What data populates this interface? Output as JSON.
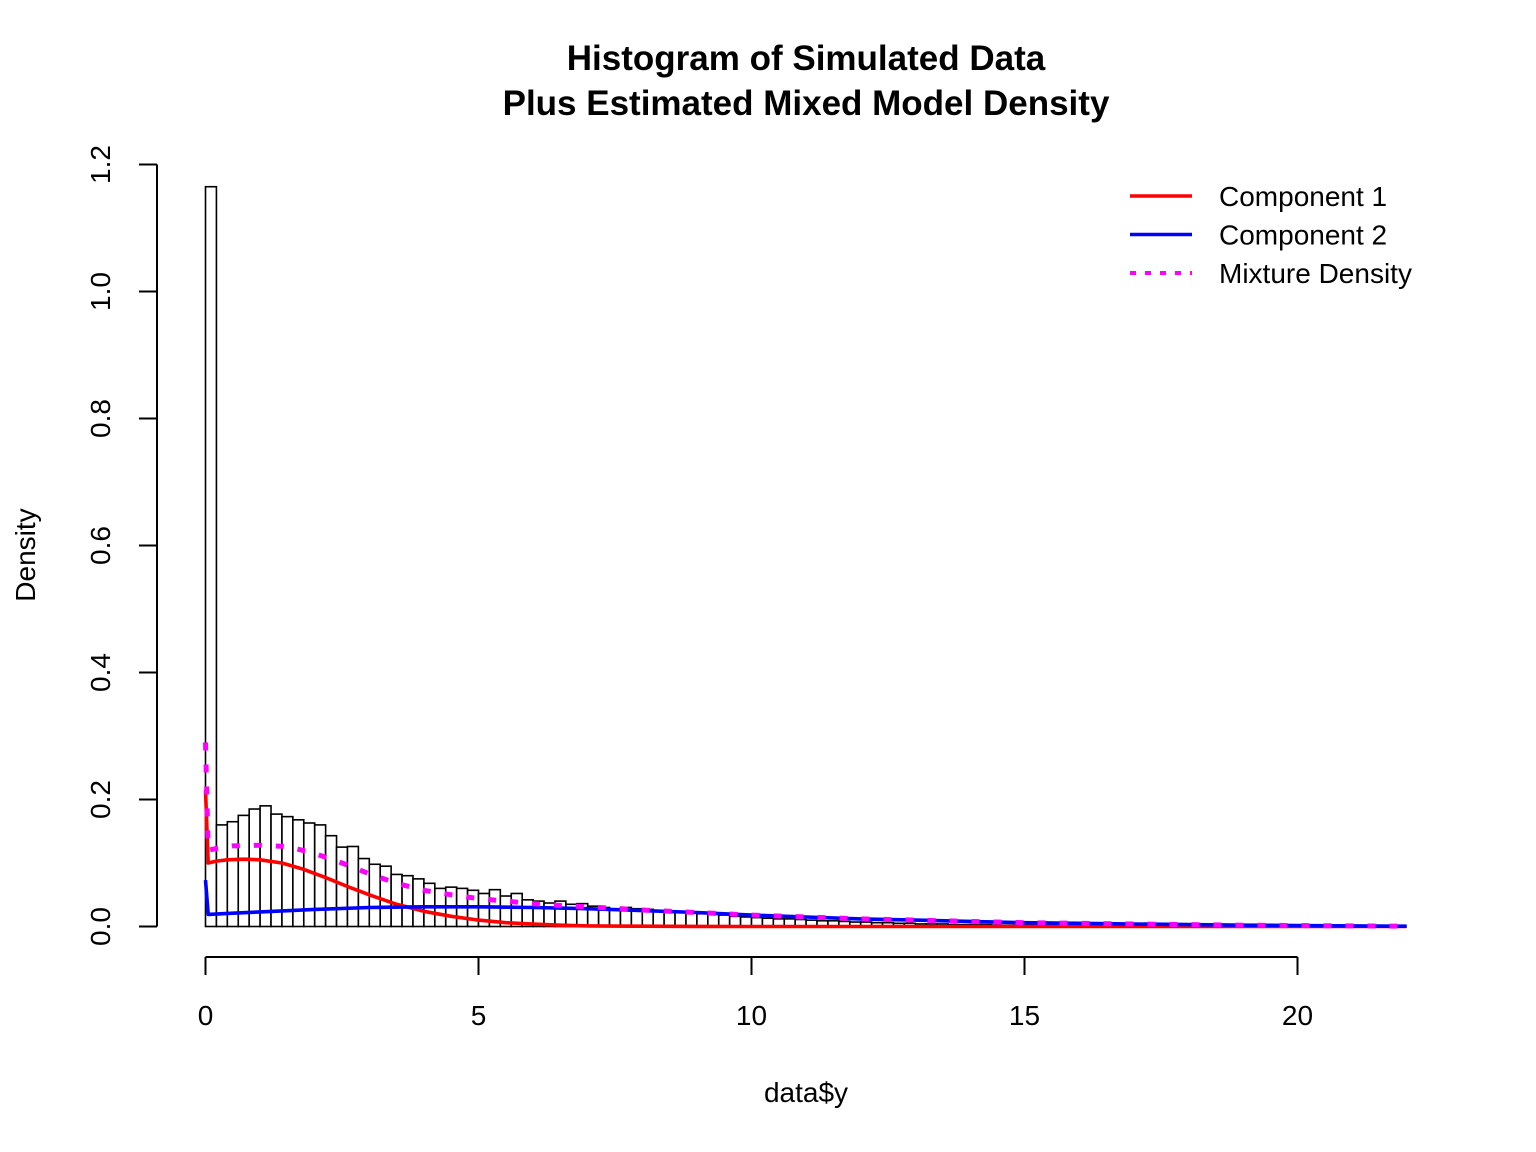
{
  "chart_data": {
    "type": "histogram",
    "title": "Histogram of Simulated Data",
    "subtitle": "Plus Estimated Mixed Model Density",
    "xlabel": "data$y",
    "ylabel": "Density",
    "xlim": [
      0,
      22
    ],
    "ylim": [
      0,
      1.2
    ],
    "x_ticks": [
      0,
      5,
      10,
      15,
      20
    ],
    "x_tick_labels": [
      "0",
      "5",
      "10",
      "15",
      "20"
    ],
    "y_ticks": [
      0,
      0.2,
      0.4,
      0.6,
      0.8,
      1.0,
      1.2
    ],
    "y_tick_labels": [
      "0.0",
      "0.2",
      "0.4",
      "0.6",
      "0.8",
      "1.0",
      "1.2"
    ],
    "grid": false,
    "histogram": {
      "bin_width": 0.2,
      "bin_start": 0,
      "densities": [
        1.165,
        0.16,
        0.165,
        0.175,
        0.185,
        0.19,
        0.177,
        0.173,
        0.168,
        0.163,
        0.16,
        0.143,
        0.125,
        0.126,
        0.107,
        0.098,
        0.095,
        0.082,
        0.08,
        0.075,
        0.068,
        0.06,
        0.062,
        0.06,
        0.057,
        0.052,
        0.058,
        0.048,
        0.052,
        0.042,
        0.04,
        0.037,
        0.04,
        0.035,
        0.036,
        0.032,
        0.03,
        0.028,
        0.03,
        0.028,
        0.027,
        0.025,
        0.024,
        0.022,
        0.021,
        0.02,
        0.019,
        0.018,
        0.016,
        0.015,
        0.014,
        0.013,
        0.012,
        0.012,
        0.011,
        0.01,
        0.009,
        0.009,
        0.008,
        0.007,
        0.007,
        0.006,
        0.006,
        0.005,
        0.005,
        0.004,
        0.004,
        0.004,
        0.003,
        0.003,
        0.003,
        0.003,
        0.002,
        0.002,
        0.002,
        0.002,
        0.002,
        0.002,
        0.001,
        0.001,
        0.001,
        0.001,
        0.001,
        0.001,
        0.001,
        0.001,
        0.001,
        0.001,
        0.001,
        0.001
      ]
    },
    "series": [
      {
        "name": "Component 1",
        "color": "#ff0000",
        "line_style": "solid",
        "x": [
          0,
          0.05,
          0.2,
          0.4,
          0.7,
          1.0,
          1.4,
          1.8,
          2.2,
          2.6,
          3.0,
          3.5,
          4.0,
          4.5,
          5.0,
          5.5,
          6.0,
          6.5,
          7.0,
          8.0,
          9.0,
          10.0,
          12.0,
          15.0,
          18.0,
          22.0
        ],
        "y": [
          0.215,
          0.1,
          0.103,
          0.105,
          0.106,
          0.105,
          0.1,
          0.09,
          0.077,
          0.063,
          0.05,
          0.035,
          0.024,
          0.016,
          0.01,
          0.006,
          0.004,
          0.002,
          0.001,
          0.0004,
          0.0001,
          0,
          0,
          0,
          0,
          0
        ]
      },
      {
        "name": "Component 2",
        "color": "#0000ff",
        "line_style": "solid",
        "x": [
          0,
          0.05,
          0.5,
          1.0,
          2.0,
          3.0,
          4.0,
          5.0,
          6.0,
          7.0,
          8.0,
          9.0,
          10.0,
          11.0,
          12.0,
          13.0,
          14.0,
          15.0,
          16.0,
          17.0,
          18.0,
          19.0,
          20.0,
          21.0,
          22.0
        ],
        "y": [
          0.073,
          0.019,
          0.021,
          0.023,
          0.027,
          0.03,
          0.031,
          0.031,
          0.03,
          0.028,
          0.025,
          0.022,
          0.018,
          0.015,
          0.012,
          0.01,
          0.008,
          0.006,
          0.005,
          0.004,
          0.003,
          0.002,
          0.0015,
          0.001,
          0.0005
        ]
      },
      {
        "name": "Mixture Density",
        "color": "#ff00ff",
        "line_style": "dotted",
        "x": [
          0,
          0.05,
          0.2,
          0.5,
          1.0,
          1.5,
          2.0,
          2.5,
          3.0,
          3.5,
          4.0,
          4.5,
          5.0,
          5.5,
          6.0,
          6.5,
          7.0,
          8.0,
          9.0,
          10.0,
          11.0,
          12.0,
          13.0,
          14.0,
          15.0,
          16.0,
          17.0,
          18.0,
          19.0,
          20.0,
          21.0,
          22.0
        ],
        "y": [
          0.29,
          0.12,
          0.123,
          0.127,
          0.128,
          0.126,
          0.115,
          0.1,
          0.083,
          0.068,
          0.057,
          0.05,
          0.044,
          0.04,
          0.036,
          0.033,
          0.031,
          0.026,
          0.022,
          0.018,
          0.015,
          0.012,
          0.01,
          0.008,
          0.006,
          0.005,
          0.004,
          0.003,
          0.002,
          0.0015,
          0.001,
          0.0005
        ]
      }
    ],
    "legend": {
      "position": "top-right",
      "entries": [
        "Component 1",
        "Component 2",
        "Mixture Density"
      ]
    }
  }
}
